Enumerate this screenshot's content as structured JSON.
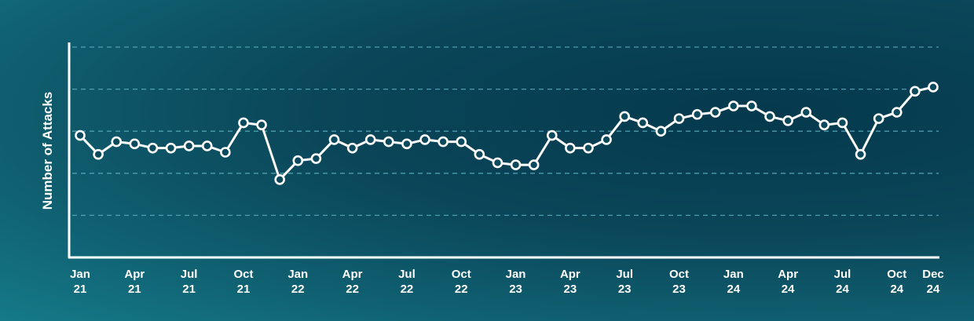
{
  "chart_data": {
    "type": "line",
    "title": "",
    "xlabel": "",
    "ylabel": "Number of Attacks",
    "ylim": [
      0,
      5
    ],
    "grid": "horizontal-dashed",
    "colors": {
      "line": "#ffffff",
      "marker_fill": "#0a4a5c",
      "grid": "#5fb2c4",
      "axis": "#ffffff"
    },
    "x_ticks": [
      {
        "index": 0,
        "month": "Jan",
        "year": "21"
      },
      {
        "index": 3,
        "month": "Apr",
        "year": "21"
      },
      {
        "index": 6,
        "month": "Jul",
        "year": "21"
      },
      {
        "index": 9,
        "month": "Oct",
        "year": "21"
      },
      {
        "index": 12,
        "month": "Jan",
        "year": "22"
      },
      {
        "index": 15,
        "month": "Apr",
        "year": "22"
      },
      {
        "index": 18,
        "month": "Jul",
        "year": "22"
      },
      {
        "index": 21,
        "month": "Oct",
        "year": "22"
      },
      {
        "index": 24,
        "month": "Jan",
        "year": "23"
      },
      {
        "index": 27,
        "month": "Apr",
        "year": "23"
      },
      {
        "index": 30,
        "month": "Jul",
        "year": "23"
      },
      {
        "index": 33,
        "month": "Oct",
        "year": "23"
      },
      {
        "index": 36,
        "month": "Jan",
        "year": "24"
      },
      {
        "index": 39,
        "month": "Apr",
        "year": "24"
      },
      {
        "index": 42,
        "month": "Jul",
        "year": "24"
      },
      {
        "index": 45,
        "month": "Oct",
        "year": "24"
      },
      {
        "index": 47,
        "month": "Dec",
        "year": "24"
      }
    ],
    "series": [
      {
        "values": [
          2.9,
          2.45,
          2.75,
          2.7,
          2.6,
          2.6,
          2.65,
          2.65,
          2.5,
          3.2,
          3.15,
          1.85,
          2.3,
          2.35,
          2.8,
          2.6,
          2.8,
          2.75,
          2.7,
          2.8,
          2.75,
          2.75,
          2.45,
          2.25,
          2.2,
          2.2,
          2.9,
          2.6,
          2.6,
          2.8,
          3.35,
          3.2,
          3.0,
          3.3,
          3.4,
          3.45,
          3.6,
          3.6,
          3.35,
          3.25,
          3.45,
          3.15,
          3.2,
          2.45,
          3.3,
          3.45,
          3.95,
          4.05
        ]
      }
    ]
  }
}
